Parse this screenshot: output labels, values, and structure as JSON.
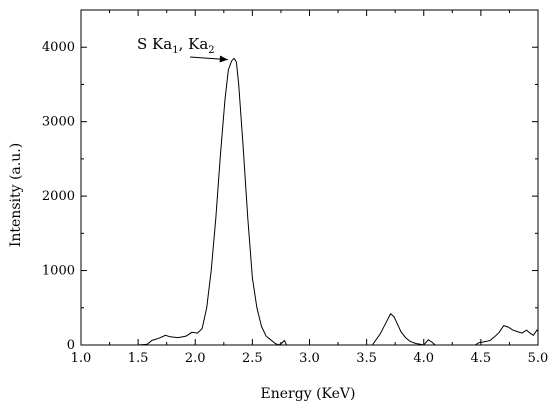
{
  "chart_data": {
    "type": "line",
    "xlabel": "Energy (KeV)",
    "ylabel": "Intensity (a.u.)",
    "xlim": [
      1.0,
      5.0
    ],
    "ylim": [
      0,
      4500
    ],
    "x_ticks": [
      "1.0",
      "1.5",
      "2.0",
      "2.5",
      "3.0",
      "3.5",
      "4.0",
      "4.5",
      "5.0"
    ],
    "y_ticks": [
      "0",
      "1000",
      "2000",
      "3000",
      "4000"
    ],
    "grid": false,
    "annotation": {
      "prefix": "S Ka",
      "sub1": "1",
      "sep": ", Ka",
      "sub2": "2",
      "points_to": [
        2.32,
        3780
      ]
    },
    "series": [
      {
        "points": [
          [
            1.5,
            0
          ],
          [
            1.58,
            10
          ],
          [
            1.62,
            60
          ],
          [
            1.68,
            90
          ],
          [
            1.74,
            130
          ],
          [
            1.78,
            110
          ],
          [
            1.85,
            100
          ],
          [
            1.92,
            120
          ],
          [
            1.97,
            170
          ],
          [
            2.02,
            160
          ],
          [
            2.06,
            220
          ],
          [
            2.1,
            500
          ],
          [
            2.14,
            1000
          ],
          [
            2.18,
            1700
          ],
          [
            2.22,
            2550
          ],
          [
            2.26,
            3300
          ],
          [
            2.29,
            3700
          ],
          [
            2.32,
            3820
          ],
          [
            2.34,
            3850
          ],
          [
            2.36,
            3800
          ],
          [
            2.38,
            3500
          ],
          [
            2.42,
            2650
          ],
          [
            2.46,
            1700
          ],
          [
            2.5,
            900
          ],
          [
            2.54,
            500
          ],
          [
            2.58,
            250
          ],
          [
            2.62,
            120
          ],
          [
            2.66,
            70
          ],
          [
            2.7,
            20
          ],
          [
            2.73,
            0
          ],
          [
            2.76,
            30
          ],
          [
            2.78,
            60
          ],
          [
            2.8,
            0
          ],
          [
            3.55,
            0
          ],
          [
            3.62,
            150
          ],
          [
            3.67,
            300
          ],
          [
            3.71,
            420
          ],
          [
            3.74,
            380
          ],
          [
            3.77,
            280
          ],
          [
            3.8,
            180
          ],
          [
            3.84,
            100
          ],
          [
            3.88,
            50
          ],
          [
            3.93,
            20
          ],
          [
            3.97,
            10
          ],
          [
            4.0,
            0
          ],
          [
            4.04,
            70
          ],
          [
            4.07,
            40
          ],
          [
            4.1,
            0
          ],
          [
            4.45,
            0
          ],
          [
            4.48,
            30
          ],
          [
            4.52,
            40
          ],
          [
            4.55,
            50
          ],
          [
            4.58,
            60
          ],
          [
            4.62,
            110
          ],
          [
            4.66,
            170
          ],
          [
            4.7,
            260
          ],
          [
            4.74,
            240
          ],
          [
            4.78,
            200
          ],
          [
            4.82,
            180
          ],
          [
            4.86,
            160
          ],
          [
            4.9,
            200
          ],
          [
            4.93,
            160
          ],
          [
            4.96,
            130
          ],
          [
            4.99,
            200
          ],
          [
            5.0,
            180
          ]
        ]
      }
    ]
  }
}
